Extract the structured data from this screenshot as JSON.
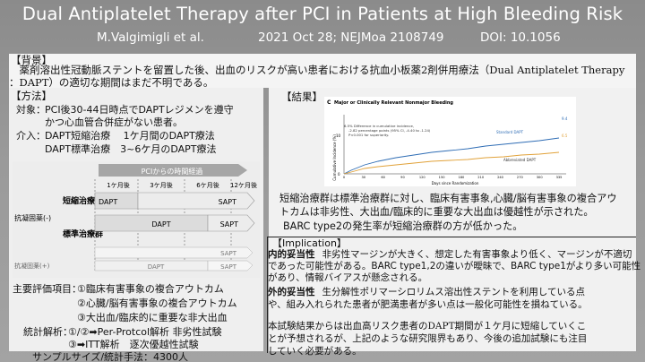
{
  "header": {
    "title": "Dual Antiplatelet Therapy after PCI in Patients at High Bleeding Risk",
    "author": "M.Valgimigli et al.",
    "journal": "2021 Oct 28; NEJMoa 2108749",
    "doi": "DOI: 10.1056"
  },
  "background": {
    "label": "【背景】",
    "text": "薬剤溶出性冠動脈ステントを留置した後、出血のリスクが高い患者における抗血小板薬2剤併用療法（Dual Antiplatelet Therapy ：DAPT）の適切な期間はまだ不明である。"
  },
  "methods": {
    "label": "【方法】",
    "subjects_label": "対象：",
    "subjects_line1": "PCI後30-44日時点でDAPTレジメンを遵守",
    "subjects_line2": "かつ心血管合併症がない患者。",
    "intervention_label": "介入：",
    "intervention_line1": "DAPT短縮治療　 1ケ月間のDAPT療法",
    "intervention_line2": "DAPT標準治療　3~6ケ月のDAPT療法"
  },
  "diagram": {
    "header": "PCIからの時間経過",
    "time_labels": [
      "1ケ月後",
      "3ケ月後",
      "6ケ月後",
      "12ケ月後"
    ],
    "group_main": "抗凝固薬(-)",
    "group_sub": "抗凝固薬(+)",
    "short_label": "短縮治療群",
    "standard_label": "標準治療群",
    "bar_dapt": "DAPT",
    "bar_sapt": "SAPT",
    "lower_short": "SAPT",
    "lower_std_dapt": "DAPT",
    "lower_std_sapt": "SAPT"
  },
  "outcomes": {
    "label": "主要評価項目：",
    "item1": "①臨床有害事象の複合アウトカム",
    "item2": "②心臓/脳有害事象の複合アウトカム",
    "item3": "③大出血/臨床的に重要な非大出血"
  },
  "stats": {
    "label": "統計解析：",
    "line1": "①/②➡Per-Protcol解析 非劣性試験",
    "line2": "③➡ITT解析　逐次優越性試験",
    "line3": "サンプルサイズ/統計手法：4300人"
  },
  "results": {
    "label": "【結果】",
    "panel": "C",
    "fig_title": "Major or Clinically Relevant Nonmajor Bleeding",
    "annotation1": "6.5% Difference in cumulative incidence,",
    "annotation2": "-2.82 percentage points (95% CI, -4.40 to -1.24)",
    "annotation3": "P<0.001 for superiority.",
    "standard_series": "Standard DAPT",
    "abbreviated_series": "Abbreviated DAPT",
    "standard_end": "9.4",
    "abbreviated_end": "6.5",
    "ylabel": "Cumulative Incidence (%)",
    "xlabel": "Days since Randomization",
    "x_ticks": [
      "0",
      "30",
      "60",
      "90",
      "120",
      "150",
      "180",
      "210",
      "240",
      "270",
      "300",
      "335"
    ],
    "y_ticks": [
      "0",
      "10"
    ],
    "text1": "短縮治療群は標準治療群に対し、臨床有害事象,心臓/脳有害事象の複合アウ",
    "text2": "トカムは非劣性、大出血/臨床的に重要な大出血は優越性が示された。",
    "text3": "BARC type2の発生率が短縮治療群の方が低かった。"
  },
  "implication": {
    "label": "【Implication】",
    "internal_label": "内的妥当性",
    "internal_text1": "非劣性マージンが大きく、想定した有害事象より低く、マージンが不適切",
    "internal_text2": "であった可能性がある。BARC type1,2の違いが曖昧で、BARC type1がより多い可能性",
    "internal_text3": "があり、情報バイアスが懸念される。",
    "external_label": "外的妥当性",
    "external_text1": "生分解性ポリマーシロリムス溶出性ステントを利用している点",
    "external_text2": "や、組み入れられた患者が肥満患者が多い点は一般化可能性を損ねている。",
    "conclusion1": "本試験結果からは出血高リスク患者のDAPT期間が１ケ月に短縮していくこ",
    "conclusion2": "とが予想されるが、上記のような研究限界もあり、今後の追加試験にも注目",
    "conclusion3": "していく必要がある。"
  },
  "colors": {
    "standard_line": "#2f6db5",
    "abbreviated_line": "#e1a23a",
    "dapt_bar": "#d8d8d8",
    "sapt_bar": "#ececec",
    "header_band": "#a6a6a6"
  }
}
